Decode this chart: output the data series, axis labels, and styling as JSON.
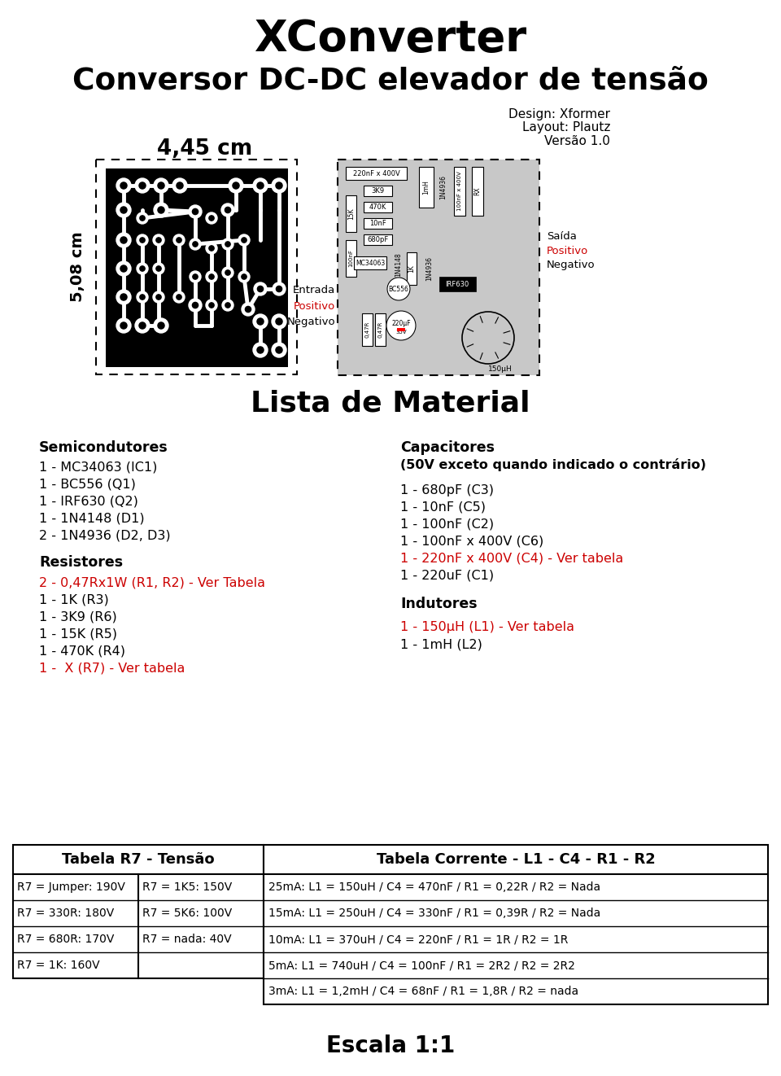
{
  "title1": "XConverter",
  "title2": "Conversor DC-DC elevador de tensão",
  "credit1": "Design: Xformer",
  "credit2": "Layout: Plautz",
  "credit3": "Versão 1.0",
  "dim_horiz": "4,45 cm",
  "dim_vert": "5,08 cm",
  "section_title": "Lista de Material",
  "col1_header": "Semicondutores",
  "col1_items": [
    "1 - MC34063 (IC1)",
    "1 - BC556 (Q1)",
    "1 - IRF630 (Q2)",
    "1 - 1N4148 (D1)",
    "2 - 1N4936 (D2, D3)"
  ],
  "col1_header2": "Resistores",
  "col1_items2_red": "2 - 0,47Rx1W (R1, R2) - Ver Tabela",
  "col1_items2": [
    "1 - 1K (R3)",
    "1 - 3K9 (R6)",
    "1 - 15K (R5)",
    "1 - 470K (R4)"
  ],
  "col1_items2_red2": "1 -  X (R7) - Ver tabela",
  "col2_header": "Capacitores",
  "col2_subheader": "(50V exceto quando indicado o contrário)",
  "col2_items": [
    "1 - 680pF (C3)",
    "1 - 10nF (C5)",
    "1 - 100nF (C2)",
    "1 - 100nF x 400V (C6)"
  ],
  "col2_item_red": "1 - 220nF x 400V (C4) - Ver tabela",
  "col2_item_last": "1 - 220uF (C1)",
  "col2_header2": "Indutores",
  "col2_item_red2": "1 - 150μH (L1) - Ver tabela",
  "col2_item2": "1 - 1mH (L2)",
  "table1_title": "Tabela R7 - Tensão",
  "table1_rows": [
    [
      "R7 = Jumper: 190V",
      "R7 = 1K5: 150V"
    ],
    [
      "R7 = 330R: 180V",
      "R7 = 5K6: 100V"
    ],
    [
      "R7 = 680R: 170V",
      "R7 = nada: 40V"
    ],
    [
      "R7 = 1K: 160V",
      ""
    ]
  ],
  "table2_title": "Tabela Corrente - L1 - C4 - R1 - R2",
  "table2_rows": [
    "25mA: L1 = 150uH / C4 = 470nF / R1 = 0,22R / R2 = Nada",
    "15mA: L1 = 250uH / C4 = 330nF / R1 = 0,39R / R2 = Nada",
    "10mA: L1 = 370uH / C4 = 220nF / R1 = 1R / R2 = 1R",
    "5mA: L1 = 740uH / C4 = 100nF / R1 = 2R2 / R2 = 2R2",
    "3mA: L1 = 1,2mH / C4 = 68nF / R1 = 1,8R / R2 = nada"
  ],
  "footer": "Escala 1:1",
  "bg_color": "#ffffff",
  "text_color": "#000000",
  "red_color": "#cc0000"
}
